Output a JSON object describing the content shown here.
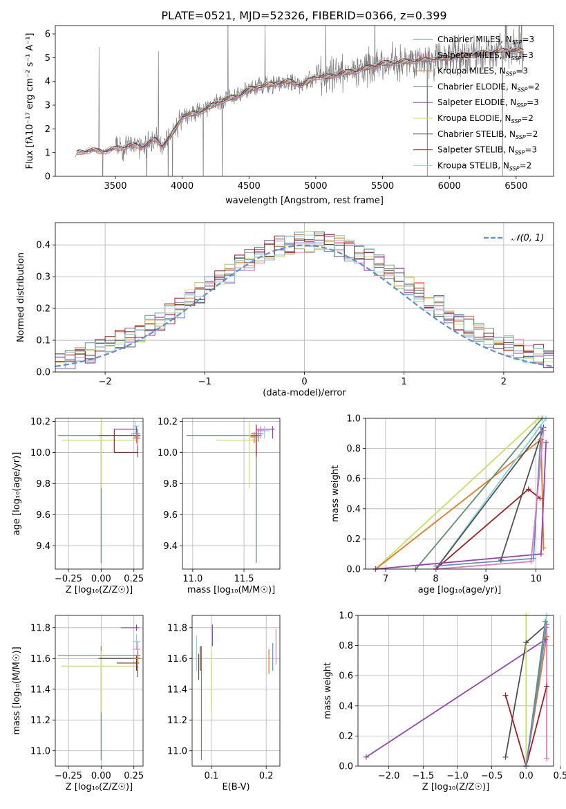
{
  "figure": {
    "title": "PLATE=0521, MJD=52326, FIBERID=0366, z=0.399"
  },
  "colors": {
    "Chabrier MILES": "#5b8fd6",
    "Salpeter MILES": "#e377c2",
    "Kroupa MILES": "#e8761b",
    "Chabrier ELODIE": "#5f8f6a",
    "Salpeter ELODIE": "#9a3fb8",
    "Kroupa ELODIE": "#c8e05a",
    "Chabrier STELIB": "#505050",
    "Salpeter STELIB": "#a51c1c",
    "Kroupa STELIB": "#7fd6e0",
    "data": "#808080",
    "normal": "#5b8fd6"
  },
  "chart_data": [
    {
      "id": "spectrum",
      "type": "line",
      "title": "PLATE=0521, MJD=52326, FIBERID=0366, z=0.399",
      "xlabel": "wavelength [Angstrom, rest frame]",
      "ylabel": "Flux [f_λ 10^-17 erg cm^-2 s^-1 A^-1]",
      "xlim": [
        3050,
        6780
      ],
      "ylim": [
        0,
        6.35
      ],
      "xticks": [
        3500,
        4000,
        4500,
        5000,
        5500,
        6000,
        6500
      ],
      "yticks": [
        0,
        1,
        2,
        3,
        4,
        5,
        6
      ],
      "grid": false,
      "legend_position": "top-right",
      "legend": [
        {
          "model": "Chabrier MILES",
          "nssp": "3"
        },
        {
          "model": "Salpeter MILES",
          "nssp": "3"
        },
        {
          "model": "Kroupa MILES",
          "nssp": "3"
        },
        {
          "model": "Chabrier ELODIE",
          "nssp": "2"
        },
        {
          "model": "Salpeter ELODIE",
          "nssp": "3"
        },
        {
          "model": "Kroupa ELODIE",
          "nssp": "2"
        },
        {
          "model": "Chabrier STELIB",
          "nssp": "2"
        },
        {
          "model": "Salpeter STELIB",
          "nssp": "3"
        },
        {
          "model": "Kroupa STELIB",
          "nssp": "2"
        }
      ],
      "continuum_x": [
        3200,
        3220,
        3300,
        3400,
        3500,
        3600,
        3700,
        3800,
        3850,
        3900,
        3950,
        4000,
        4100,
        4200,
        4300,
        4400,
        4500,
        4600,
        4700,
        4800,
        4900,
        5000,
        5100,
        5200,
        5300,
        5400,
        5500,
        5600,
        5700,
        5800,
        5900,
        6000,
        6100,
        6200,
        6300,
        6400,
        6500,
        6560
      ],
      "continuum_y": [
        0.9,
        1.0,
        1.1,
        1.05,
        1.15,
        1.3,
        1.25,
        1.55,
        1.3,
        1.6,
        2.0,
        2.55,
        2.65,
        2.9,
        3.2,
        3.35,
        3.65,
        3.8,
        3.9,
        4.0,
        3.85,
        4.2,
        4.2,
        4.35,
        4.45,
        4.6,
        4.75,
        4.8,
        4.85,
        4.9,
        4.95,
        5.0,
        5.1,
        5.15,
        5.2,
        5.3,
        5.3,
        5.25
      ]
    },
    {
      "id": "residuals",
      "type": "line",
      "xlabel": "(data-model)/error",
      "ylabel": "Normed distribution",
      "xlim": [
        -2.5,
        2.5
      ],
      "ylim": [
        0,
        0.47
      ],
      "xticks": [
        -2,
        -1,
        0,
        1,
        2
      ],
      "yticks": [
        0.0,
        0.1,
        0.2,
        0.3,
        0.4
      ],
      "grid": true,
      "legend_position": "top-right",
      "legend": [
        {
          "name": "N(0,1)"
        }
      ],
      "normal": {
        "mean": 0,
        "sigma": 1
      },
      "step_histograms_per_model": 9,
      "bin_width": 0.1
    },
    {
      "id": "age_vs_Z",
      "type": "scatter",
      "xlabel": "Z [log10(Z/Z☉)]",
      "ylabel": "age [log10(age/yr)]",
      "xlim": [
        -0.35,
        0.32
      ],
      "ylim": [
        9.25,
        10.22
      ],
      "xticks": [
        -0.25,
        0.0,
        0.25
      ],
      "yticks": [
        9.4,
        9.6,
        9.8,
        10.0,
        10.2
      ],
      "grid": true
    },
    {
      "id": "age_vs_mass",
      "type": "scatter",
      "xlabel": "mass [log10(M/M☉)]",
      "xlim": [
        10.9,
        11.85
      ],
      "ylim": [
        9.25,
        10.22
      ],
      "xticks": [
        11.0,
        11.5
      ],
      "yticks": [
        9.4,
        9.6,
        9.8,
        10.0,
        10.2
      ],
      "grid": true
    },
    {
      "id": "weight_vs_age",
      "type": "line",
      "xlabel": "age [log10(age/yr)]",
      "ylabel": "mass weight",
      "xlim": [
        6.6,
        10.35
      ],
      "ylim": [
        0,
        1.0
      ],
      "xticks": [
        7,
        8,
        9,
        10
      ],
      "yticks": [
        0.0,
        0.2,
        0.4,
        0.6,
        0.8,
        1.0
      ],
      "grid": true,
      "series": [
        {
          "model": "Kroupa ELODIE",
          "x": [
            6.8,
            10.05
          ],
          "y": [
            0.0,
            1.0
          ]
        },
        {
          "model": "Kroupa MILES",
          "x": [
            6.8,
            10.1,
            10.15
          ],
          "y": [
            0.0,
            0.86,
            0.14
          ]
        },
        {
          "model": "Chabrier ELODIE",
          "x": [
            7.6,
            10.12
          ],
          "y": [
            0.0,
            1.0
          ]
        },
        {
          "model": "Kroupa STELIB",
          "x": [
            8.0,
            10.2
          ],
          "y": [
            0.0,
            1.0
          ]
        },
        {
          "model": "Chabrier STELIB",
          "x": [
            9.3,
            10.15,
            8.0
          ],
          "y": [
            0.06,
            0.94,
            0.0
          ]
        },
        {
          "model": "Salpeter STELIB",
          "x": [
            8.0,
            9.85,
            10.08
          ],
          "y": [
            0.0,
            0.53,
            0.47
          ]
        },
        {
          "model": "Salpeter ELODIE",
          "x": [
            6.8,
            10.1,
            10.2
          ],
          "y": [
            0.0,
            0.1,
            0.84
          ]
        },
        {
          "model": "Chabrier MILES",
          "x": [
            8.0,
            9.95,
            10.1
          ],
          "y": [
            0.02,
            0.07,
            0.94
          ]
        },
        {
          "model": "Salpeter MILES",
          "x": [
            8.0,
            9.9,
            10.15
          ],
          "y": [
            0.0,
            0.05,
            0.92
          ]
        }
      ]
    },
    {
      "id": "mass_vs_Z",
      "type": "scatter",
      "xlabel": "Z [log10(Z/Z☉)]",
      "ylabel": "mass [log10(M/M☉)]",
      "xlim": [
        -0.35,
        0.32
      ],
      "ylim": [
        10.9,
        11.88
      ],
      "xticks": [
        -0.25,
        0.0,
        0.25
      ],
      "yticks": [
        11.0,
        11.2,
        11.4,
        11.6,
        11.8
      ],
      "grid": true
    },
    {
      "id": "mass_vs_ebv",
      "type": "scatter",
      "xlabel": "E(B-V)",
      "xlim": [
        0.065,
        0.225
      ],
      "ylim": [
        10.9,
        11.88
      ],
      "xticks": [
        0.1,
        0.2
      ],
      "yticks": [
        11.0,
        11.2,
        11.4,
        11.6,
        11.8
      ],
      "grid": true
    },
    {
      "id": "weight_vs_Z",
      "type": "line",
      "xlabel": "Z [log10(Z/Z☉)]",
      "ylabel": "mass weight",
      "xlim": [
        -2.45,
        0.4
      ],
      "ylim": [
        0,
        1.0
      ],
      "xticks": [
        -2.0,
        -1.5,
        -1.0,
        -0.5,
        0.0,
        0.5
      ],
      "yticks": [
        0.0,
        0.2,
        0.4,
        0.6,
        0.8,
        1.0
      ],
      "grid": true,
      "series": [
        {
          "model": "Salpeter ELODIE",
          "x": [
            -2.33,
            0.28
          ],
          "y": [
            0.06,
            0.84
          ]
        },
        {
          "model": "Chabrier STELIB",
          "x": [
            -0.3,
            0.0,
            0.3
          ],
          "y": [
            0.06,
            0.82,
            0.94
          ]
        },
        {
          "model": "Salpeter STELIB",
          "x": [
            -0.3,
            0.0,
            0.3
          ],
          "y": [
            0.47,
            0.0,
            0.53
          ]
        },
        {
          "model": "Kroupa ELODIE",
          "x": [
            0.0,
            0.0
          ],
          "y": [
            0.0,
            1.0
          ]
        },
        {
          "model": "Kroupa STELIB",
          "x": [
            0.0,
            0.3
          ],
          "y": [
            0.0,
            1.0
          ]
        },
        {
          "model": "Chabrier ELODIE",
          "x": [
            0.0,
            0.28
          ],
          "y": [
            0.0,
            0.96
          ]
        },
        {
          "model": "Kroupa MILES",
          "x": [
            0.0,
            0.3
          ],
          "y": [
            0.0,
            0.86
          ]
        },
        {
          "model": "Chabrier MILES",
          "x": [
            0.0,
            0.3
          ],
          "y": [
            0.0,
            0.94
          ]
        },
        {
          "model": "Salpeter MILES",
          "x": [
            0.3,
            0.3
          ],
          "y": [
            0.05,
            0.92
          ]
        }
      ]
    }
  ]
}
